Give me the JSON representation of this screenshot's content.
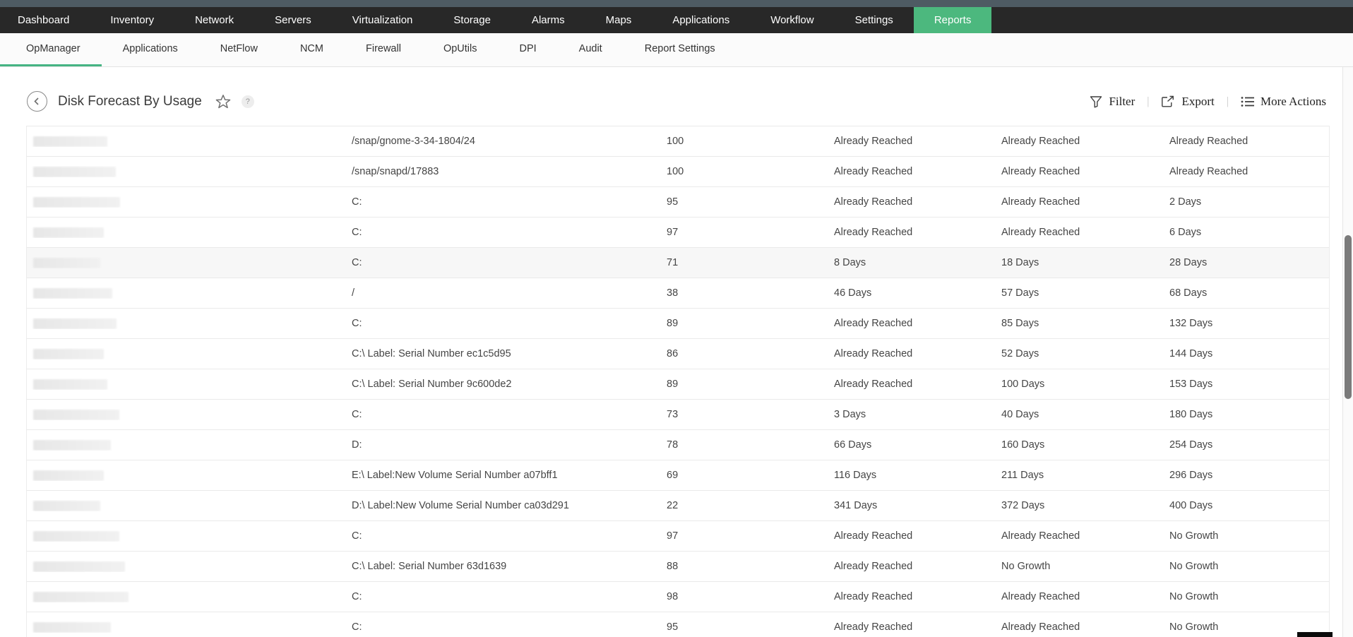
{
  "topnav": {
    "items": [
      {
        "label": "Dashboard",
        "active": false
      },
      {
        "label": "Inventory",
        "active": false
      },
      {
        "label": "Network",
        "active": false
      },
      {
        "label": "Servers",
        "active": false
      },
      {
        "label": "Virtualization",
        "active": false
      },
      {
        "label": "Storage",
        "active": false
      },
      {
        "label": "Alarms",
        "active": false
      },
      {
        "label": "Maps",
        "active": false
      },
      {
        "label": "Applications",
        "active": false
      },
      {
        "label": "Workflow",
        "active": false
      },
      {
        "label": "Settings",
        "active": false
      },
      {
        "label": "Reports",
        "active": true
      }
    ]
  },
  "subnav": {
    "items": [
      {
        "label": "OpManager",
        "active": true
      },
      {
        "label": "Applications",
        "active": false
      },
      {
        "label": "NetFlow",
        "active": false
      },
      {
        "label": "NCM",
        "active": false
      },
      {
        "label": "Firewall",
        "active": false
      },
      {
        "label": "OpUtils",
        "active": false
      },
      {
        "label": "DPI",
        "active": false
      },
      {
        "label": "Audit",
        "active": false
      },
      {
        "label": "Report Settings",
        "active": false
      }
    ]
  },
  "header": {
    "title": "Disk Forecast By Usage",
    "help_badge": "?",
    "actions": {
      "filter": "Filter",
      "export": "Export",
      "more": "More Actions",
      "separator": "|"
    }
  },
  "colors": {
    "accent_green": "#4cb87e",
    "active_tab_underline": "#45b483",
    "topstrip": "#4e5b63",
    "nav_bg": "#282828"
  },
  "table": {
    "rows": [
      {
        "redact_width": 105,
        "volume": "/snap/gnome-3-34-1804/24",
        "usage": "100",
        "forecast_1": "Already Reached",
        "forecast_2": "Already Reached",
        "forecast_3": "Already Reached",
        "highlighted": false
      },
      {
        "redact_width": 117,
        "volume": "/snap/snapd/17883",
        "usage": "100",
        "forecast_1": "Already Reached",
        "forecast_2": "Already Reached",
        "forecast_3": "Already Reached",
        "highlighted": false
      },
      {
        "redact_width": 123,
        "volume": "C:",
        "usage": "95",
        "forecast_1": "Already Reached",
        "forecast_2": "Already Reached",
        "forecast_3": "2 Days",
        "highlighted": false
      },
      {
        "redact_width": 100,
        "volume": "C:",
        "usage": "97",
        "forecast_1": "Already Reached",
        "forecast_2": "Already Reached",
        "forecast_3": "6 Days",
        "highlighted": false
      },
      {
        "redact_width": 95,
        "volume": "C:",
        "usage": "71",
        "forecast_1": "8 Days",
        "forecast_2": "18 Days",
        "forecast_3": "28 Days",
        "highlighted": true
      },
      {
        "redact_width": 112,
        "volume": "/",
        "usage": "38",
        "forecast_1": "46 Days",
        "forecast_2": "57 Days",
        "forecast_3": "68 Days",
        "highlighted": false
      },
      {
        "redact_width": 118,
        "volume": "C:",
        "usage": "89",
        "forecast_1": "Already Reached",
        "forecast_2": "85 Days",
        "forecast_3": "132 Days",
        "highlighted": false
      },
      {
        "redact_width": 100,
        "volume": "C:\\ Label: Serial Number ec1c5d95",
        "usage": "86",
        "forecast_1": "Already Reached",
        "forecast_2": "52 Days",
        "forecast_3": "144 Days",
        "highlighted": false
      },
      {
        "redact_width": 105,
        "volume": "C:\\ Label: Serial Number 9c600de2",
        "usage": "89",
        "forecast_1": "Already Reached",
        "forecast_2": "100 Days",
        "forecast_3": "153 Days",
        "highlighted": false
      },
      {
        "redact_width": 122,
        "volume": "C:",
        "usage": "73",
        "forecast_1": "3 Days",
        "forecast_2": "40 Days",
        "forecast_3": "180 Days",
        "highlighted": false
      },
      {
        "redact_width": 110,
        "volume": "D:",
        "usage": "78",
        "forecast_1": "66 Days",
        "forecast_2": "160 Days",
        "forecast_3": "254 Days",
        "highlighted": false
      },
      {
        "redact_width": 100,
        "volume": "E:\\ Label:New Volume Serial Number a07bff1",
        "usage": "69",
        "forecast_1": "116 Days",
        "forecast_2": "211 Days",
        "forecast_3": "296 Days",
        "highlighted": false
      },
      {
        "redact_width": 95,
        "volume": "D:\\ Label:New Volume Serial Number ca03d291",
        "usage": "22",
        "forecast_1": "341 Days",
        "forecast_2": "372 Days",
        "forecast_3": "400 Days",
        "highlighted": false
      },
      {
        "redact_width": 122,
        "volume": "C:",
        "usage": "97",
        "forecast_1": "Already Reached",
        "forecast_2": "Already Reached",
        "forecast_3": "No Growth",
        "highlighted": false
      },
      {
        "redact_width": 130,
        "volume": "C:\\ Label: Serial Number 63d1639",
        "usage": "88",
        "forecast_1": "Already Reached",
        "forecast_2": "No Growth",
        "forecast_3": "No Growth",
        "highlighted": false
      },
      {
        "redact_width": 135,
        "volume": "C:",
        "usage": "98",
        "forecast_1": "Already Reached",
        "forecast_2": "Already Reached",
        "forecast_3": "No Growth",
        "highlighted": false
      },
      {
        "redact_width": 110,
        "volume": "C:",
        "usage": "95",
        "forecast_1": "Already Reached",
        "forecast_2": "Already Reached",
        "forecast_3": "No Growth",
        "highlighted": false
      }
    ]
  }
}
